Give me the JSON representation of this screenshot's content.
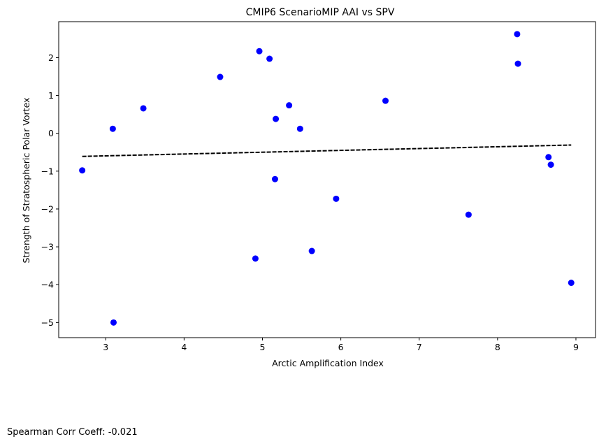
{
  "chart_data": {
    "type": "scatter",
    "title": "CMIP6 ScenarioMIP AAI vs SPV",
    "xlabel": "Arctic Amplification Index",
    "ylabel": "Strength of Stratospheric Polar Vortex",
    "xlim": [
      2.4,
      9.25
    ],
    "ylim": [
      -5.4,
      2.95
    ],
    "xticks": [
      3,
      4,
      5,
      6,
      7,
      8,
      9
    ],
    "xtick_labels": [
      "3",
      "4",
      "5",
      "6",
      "7",
      "8",
      "9"
    ],
    "yticks": [
      -5,
      -4,
      -3,
      -2,
      -1,
      0,
      1,
      2
    ],
    "ytick_labels": [
      "−5",
      "−4",
      "−3",
      "−2",
      "−1",
      "0",
      "1",
      "2"
    ],
    "grid": false,
    "points": {
      "color": "#0000ff",
      "x": [
        2.7,
        3.09,
        3.1,
        3.48,
        4.46,
        4.91,
        4.96,
        5.09,
        5.16,
        5.17,
        5.34,
        5.48,
        5.63,
        5.94,
        6.57,
        7.63,
        8.25,
        8.26,
        8.65,
        8.68,
        8.94
      ],
      "y": [
        -0.98,
        0.12,
        -5.0,
        0.66,
        1.49,
        -3.31,
        2.17,
        1.97,
        -1.21,
        0.38,
        0.74,
        0.12,
        -3.11,
        -1.73,
        0.86,
        -2.15,
        2.62,
        1.84,
        -0.63,
        -0.83,
        -3.95
      ]
    },
    "fit_line": {
      "color": "#000000",
      "style": "dashed",
      "x": [
        2.7,
        8.94
      ],
      "y": [
        -0.61,
        -0.31
      ]
    }
  },
  "annotation": {
    "text": "Spearman Corr Coeff: -0.021"
  }
}
